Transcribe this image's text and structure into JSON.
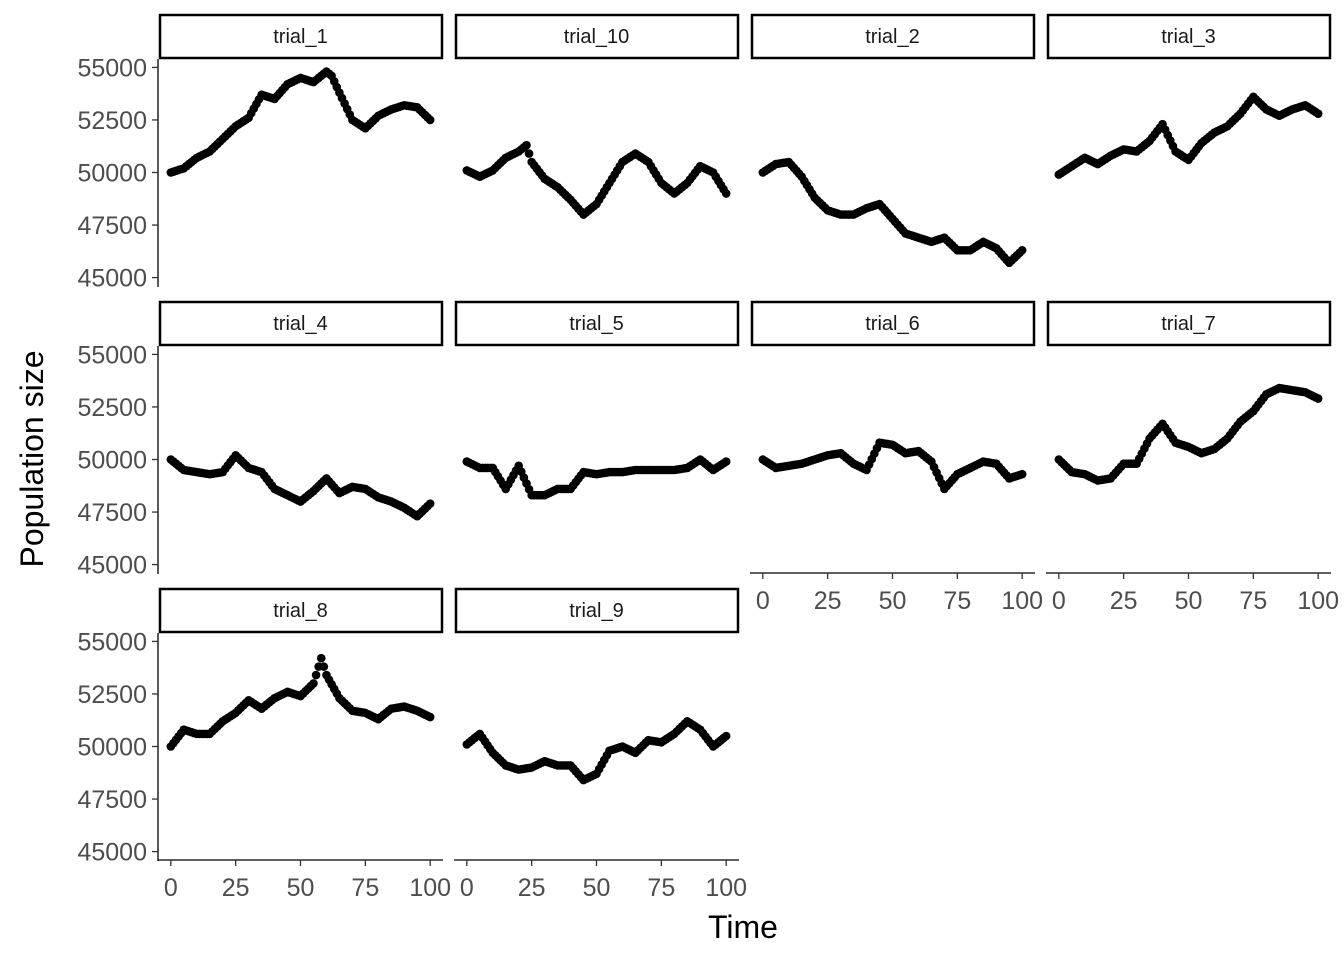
{
  "chart_data": {
    "type": "scatter",
    "layout": "facet_wrap",
    "xlabel": "Time",
    "ylabel": "Population size",
    "xlim": [
      0,
      100
    ],
    "ylim": [
      45000,
      55000
    ],
    "x_ticks": [
      0,
      25,
      50,
      75,
      100
    ],
    "y_ticks": [
      45000,
      47500,
      50000,
      52500,
      55000
    ],
    "x_tick_labels": [
      "0",
      "25",
      "50",
      "75",
      "100"
    ],
    "y_tick_labels": [
      "45000",
      "47500",
      "50000",
      "52500",
      "55000"
    ],
    "grid": false,
    "point_color": "#000000",
    "facets": [
      {
        "name": "trial_1",
        "x": [
          0,
          5,
          10,
          15,
          20,
          25,
          30,
          35,
          40,
          45,
          50,
          55,
          60,
          62,
          65,
          70,
          75,
          80,
          85,
          90,
          95,
          100
        ],
        "values": [
          50000,
          50200,
          50700,
          51000,
          51600,
          52200,
          52600,
          53700,
          53500,
          54200,
          54500,
          54300,
          54800,
          54600,
          53800,
          52500,
          52100,
          52700,
          53000,
          53200,
          53100,
          52500
        ]
      },
      {
        "name": "trial_10",
        "x": [
          0,
          5,
          10,
          15,
          20,
          23,
          25,
          30,
          35,
          40,
          45,
          50,
          55,
          60,
          65,
          70,
          75,
          80,
          85,
          90,
          95,
          100
        ],
        "values": [
          50100,
          49800,
          50100,
          50700,
          51000,
          51300,
          50500,
          49700,
          49300,
          48700,
          48000,
          48500,
          49500,
          50500,
          50900,
          50500,
          49500,
          49000,
          49500,
          50300,
          50000,
          49000
        ]
      },
      {
        "name": "trial_2",
        "x": [
          0,
          5,
          10,
          15,
          20,
          25,
          30,
          35,
          40,
          45,
          50,
          55,
          60,
          65,
          70,
          75,
          80,
          85,
          90,
          95,
          100
        ],
        "values": [
          50000,
          50400,
          50500,
          49800,
          48800,
          48200,
          48000,
          48000,
          48300,
          48500,
          47800,
          47100,
          46900,
          46700,
          46900,
          46300,
          46300,
          46700,
          46400,
          45700,
          46300
        ]
      },
      {
        "name": "trial_3",
        "x": [
          0,
          5,
          10,
          15,
          20,
          25,
          30,
          35,
          40,
          45,
          50,
          55,
          60,
          65,
          70,
          75,
          80,
          85,
          90,
          95,
          100
        ],
        "values": [
          49900,
          50300,
          50700,
          50400,
          50800,
          51100,
          51000,
          51500,
          52300,
          51000,
          50600,
          51400,
          51900,
          52200,
          52800,
          53600,
          53000,
          52700,
          53000,
          53200,
          52800
        ]
      },
      {
        "name": "trial_4",
        "x": [
          0,
          5,
          10,
          15,
          20,
          25,
          30,
          35,
          40,
          45,
          50,
          55,
          60,
          65,
          70,
          75,
          80,
          85,
          90,
          95,
          100
        ],
        "values": [
          50000,
          49500,
          49400,
          49300,
          49400,
          50200,
          49600,
          49400,
          48600,
          48300,
          48000,
          48500,
          49100,
          48400,
          48700,
          48600,
          48200,
          48000,
          47700,
          47300,
          47900
        ]
      },
      {
        "name": "trial_5",
        "x": [
          0,
          5,
          10,
          15,
          20,
          25,
          30,
          35,
          40,
          45,
          50,
          55,
          60,
          65,
          70,
          75,
          80,
          85,
          90,
          95,
          100
        ],
        "values": [
          49900,
          49600,
          49600,
          48600,
          49700,
          48300,
          48300,
          48600,
          48600,
          49400,
          49300,
          49400,
          49400,
          49500,
          49500,
          49500,
          49500,
          49600,
          50000,
          49500,
          49900
        ]
      },
      {
        "name": "trial_6",
        "x": [
          0,
          5,
          10,
          15,
          20,
          25,
          30,
          35,
          40,
          45,
          50,
          55,
          60,
          65,
          70,
          75,
          80,
          85,
          90,
          95,
          100
        ],
        "values": [
          50000,
          49600,
          49700,
          49800,
          50000,
          50200,
          50300,
          49800,
          49500,
          50800,
          50700,
          50300,
          50400,
          49900,
          48600,
          49300,
          49600,
          49900,
          49800,
          49100,
          49300
        ]
      },
      {
        "name": "trial_7",
        "x": [
          0,
          5,
          10,
          15,
          20,
          25,
          30,
          35,
          40,
          45,
          50,
          55,
          60,
          65,
          70,
          75,
          80,
          85,
          90,
          95,
          100
        ],
        "values": [
          50000,
          49400,
          49300,
          49000,
          49100,
          49800,
          49800,
          51000,
          51700,
          50800,
          50600,
          50300,
          50500,
          51000,
          51800,
          52300,
          53100,
          53400,
          53300,
          53200,
          52900
        ]
      },
      {
        "name": "trial_8",
        "x": [
          0,
          5,
          10,
          15,
          20,
          25,
          30,
          35,
          40,
          45,
          50,
          55,
          58,
          60,
          65,
          70,
          75,
          80,
          85,
          90,
          95,
          100
        ],
        "values": [
          50000,
          50800,
          50600,
          50600,
          51200,
          51600,
          52200,
          51800,
          52300,
          52600,
          52400,
          53000,
          54200,
          53400,
          52300,
          51700,
          51600,
          51300,
          51800,
          51900,
          51700,
          51400
        ]
      },
      {
        "name": "trial_9",
        "x": [
          0,
          5,
          10,
          15,
          20,
          25,
          30,
          35,
          40,
          45,
          50,
          55,
          60,
          65,
          70,
          75,
          80,
          85,
          90,
          95,
          100
        ],
        "values": [
          50100,
          50600,
          49700,
          49100,
          48900,
          49000,
          49300,
          49100,
          49100,
          48400,
          48700,
          49800,
          50000,
          49700,
          50300,
          50200,
          50600,
          51200,
          50800,
          50000,
          50500
        ]
      }
    ]
  }
}
